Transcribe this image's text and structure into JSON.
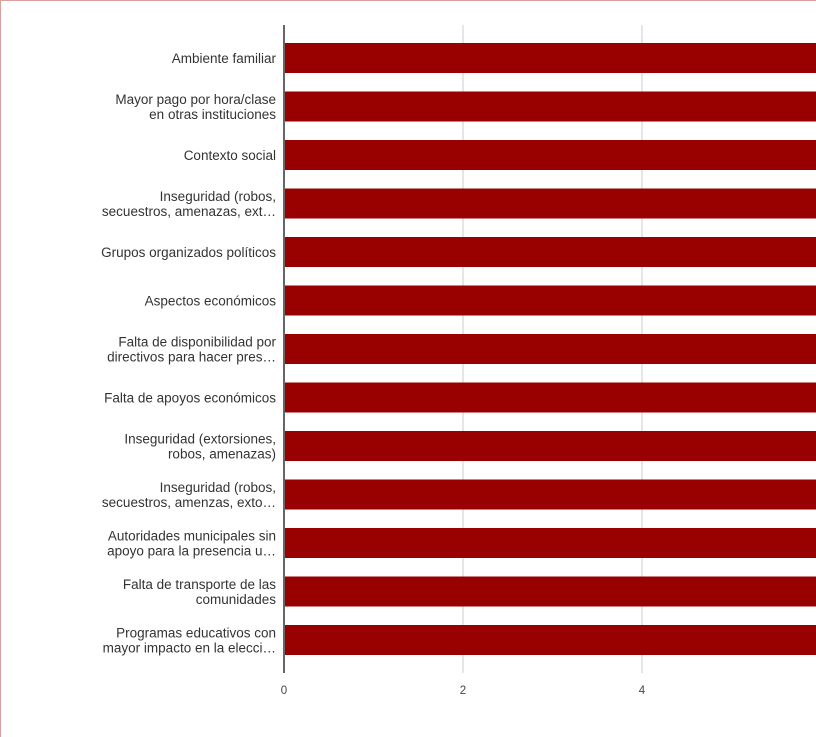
{
  "chart_data": {
    "type": "bar",
    "orientation": "horizontal",
    "categories": [
      [
        "Ambiente familiar"
      ],
      [
        "Mayor pago por hora/clase",
        "en otras instituciones"
      ],
      [
        "Contexto social"
      ],
      [
        "Inseguridad (robos,",
        "secuestros, amenazas, ext…"
      ],
      [
        "Grupos organizados políticos"
      ],
      [
        "Aspectos económicos"
      ],
      [
        "Falta de disponibilidad por",
        "directivos para hacer pres…"
      ],
      [
        "Falta de apoyos económicos"
      ],
      [
        "Inseguridad (extorsiones,",
        "robos, amenazas)"
      ],
      [
        "Inseguridad (robos,",
        "secuestros, amenzas, exto…"
      ],
      [
        "Autoridades municipales sin",
        "apoyo para la presencia u…"
      ],
      [
        "Falta de transporte de las",
        "comunidades"
      ],
      [
        "Programas educativos con",
        "mayor impacto en la elecci…"
      ]
    ],
    "values": [
      6,
      6,
      6,
      6,
      6,
      6,
      6,
      6,
      6,
      6,
      6,
      6,
      6
    ],
    "xticks": [
      "0",
      "2",
      "4"
    ],
    "xlim": [
      0,
      6
    ],
    "grid": true,
    "colors": {
      "bar": "#990000",
      "axis": "#333333",
      "grid": "#cccccc",
      "frame": "#d9a0a0"
    }
  }
}
